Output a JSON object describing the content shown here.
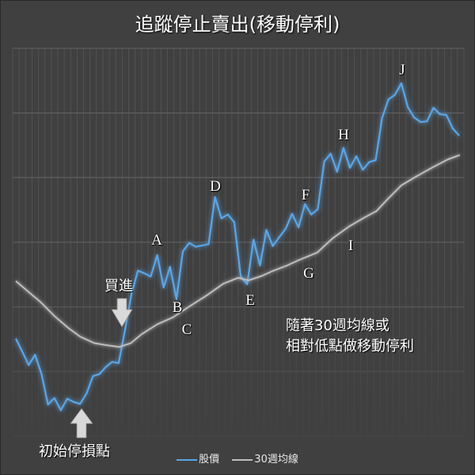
{
  "chart_data": {
    "type": "line",
    "title": "追蹤停止賣出(移動停利)",
    "xlabel": "",
    "ylabel": "",
    "ylim": [
      0,
      60
    ],
    "xlim": [
      0,
      69
    ],
    "grid": true,
    "legend_position": "bottom",
    "series": [
      {
        "name": "股價",
        "color": "#5aa5e6",
        "values": [
          15.1,
          13.1,
          11.0,
          12.6,
          9.6,
          4.9,
          5.9,
          4.0,
          5.8,
          5.3,
          5.0,
          6.6,
          9.3,
          9.6,
          10.7,
          11.5,
          11.3,
          16.5,
          22.0,
          25.6,
          25.2,
          24.7,
          28.0,
          23.0,
          26.2,
          21.2,
          28.6,
          29.9,
          29.3,
          29.5,
          29.7,
          37.0,
          33.7,
          34.3,
          33.1,
          24.7,
          23.5,
          30.4,
          26.4,
          31.9,
          29.4,
          30.8,
          32.1,
          34.4,
          32.3,
          35.9,
          34.3,
          35.1,
          42.5,
          43.7,
          40.9,
          44.6,
          41.5,
          43.3,
          41.2,
          42.4,
          42.7,
          49.2,
          52.1,
          52.8,
          54.6,
          50.9,
          49.3,
          48.6,
          48.7,
          50.8,
          49.8,
          49.7,
          47.6,
          46.5
        ]
      },
      {
        "name": "30週均線",
        "color": "#bdbdbd",
        "points": [
          [
            0,
            24.0
          ],
          [
            2.6,
            21.8
          ],
          [
            3.8,
            20.8
          ],
          [
            6,
            18.6
          ],
          [
            8.1,
            16.8
          ],
          [
            10,
            15.4
          ],
          [
            12.2,
            14.4
          ],
          [
            14,
            14.1
          ],
          [
            16.1,
            13.8
          ],
          [
            17.9,
            14.4
          ],
          [
            19.6,
            15.8
          ],
          [
            22,
            17.3
          ],
          [
            24.5,
            18.4
          ],
          [
            26.9,
            20.0
          ],
          [
            29.9,
            21.9
          ],
          [
            32.3,
            23.6
          ],
          [
            34.6,
            24.5
          ],
          [
            36.2,
            24.1
          ],
          [
            38.3,
            24.8
          ],
          [
            40.1,
            25.6
          ],
          [
            42.2,
            26.4
          ],
          [
            44.2,
            27.3
          ],
          [
            46.9,
            28.4
          ],
          [
            49.3,
            30.6
          ],
          [
            51.8,
            32.4
          ],
          [
            54.2,
            33.8
          ],
          [
            56.1,
            34.8
          ],
          [
            57.9,
            36.7
          ],
          [
            60,
            38.8
          ],
          [
            62.2,
            40.1
          ],
          [
            64.7,
            41.5
          ],
          [
            67.2,
            42.8
          ],
          [
            69.1,
            43.5
          ]
        ]
      }
    ],
    "point_labels": [
      "A",
      "B",
      "C",
      "D",
      "E",
      "F",
      "G",
      "H",
      "I",
      "J"
    ],
    "annotations": {
      "buy": "買進",
      "initial_stop": "初始停損點",
      "note_line1": "隨著30週均線或",
      "note_line2": "相對低點做移動停利"
    }
  }
}
